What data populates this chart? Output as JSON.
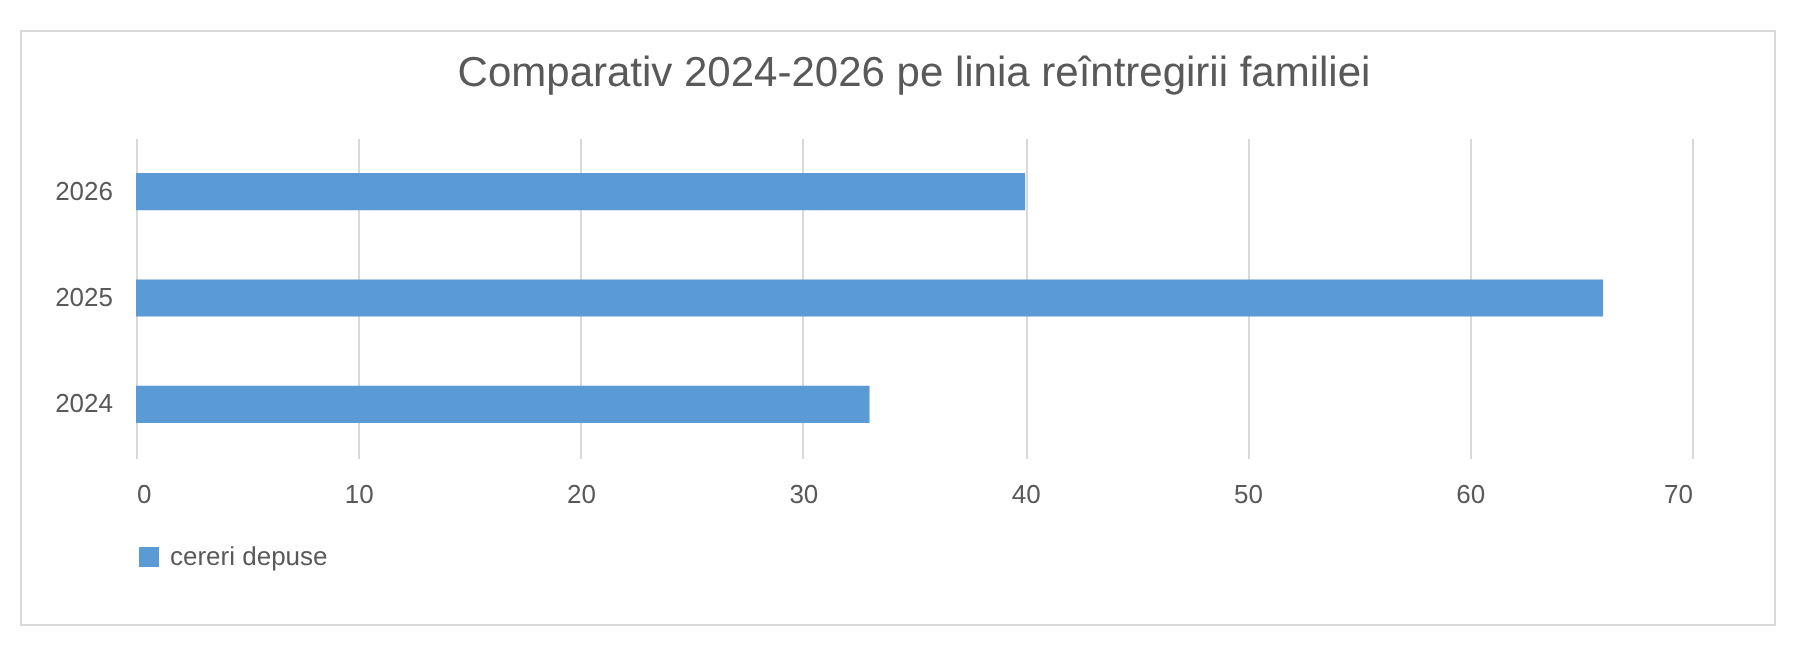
{
  "chart_data": {
    "type": "bar",
    "orientation": "horizontal",
    "title": "Comparativ 2024-2026 pe linia reîntregirii familiei",
    "categories": [
      "2026",
      "2025",
      "2024"
    ],
    "series": [
      {
        "name": "cereri depuse",
        "color": "#5b9bd5",
        "values": [
          40,
          66,
          33
        ]
      }
    ],
    "xlim": [
      0,
      70
    ],
    "xticks": [
      0,
      10,
      20,
      30,
      40,
      50,
      60,
      70
    ],
    "grid": "x",
    "legend": "bottom"
  }
}
